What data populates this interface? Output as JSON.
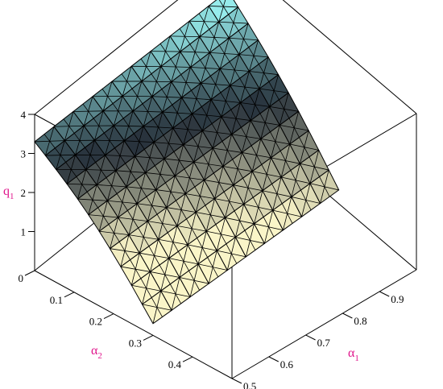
{
  "chart_data": {
    "type": "surface3d",
    "title": "",
    "axes": {
      "x": {
        "symbol": "α",
        "subscript": "1",
        "range": [
          0.5,
          1.0
        ],
        "ticks": [
          "0.5",
          "0.6",
          "0.7",
          "0.8",
          "0.9"
        ]
      },
      "y": {
        "symbol": "α",
        "subscript": "2",
        "range": [
          0,
          0.5
        ],
        "ticks": [
          "0",
          "0.1",
          "0.2",
          "0.3",
          "0.4"
        ]
      },
      "z": {
        "symbol": "q",
        "subscript": "1",
        "range": [
          0,
          4
        ],
        "ticks": [
          "1",
          "2",
          "3",
          "4"
        ]
      }
    },
    "surface": {
      "domain_alpha1": [
        0.5,
        0.99
      ],
      "domain_alpha2": [
        0.0,
        0.3
      ],
      "grid_rows": 11,
      "grid_cols": 10,
      "corner_values": {
        "alpha1_0.5_alpha2_0.0": 3.3,
        "alpha1_0.99_alpha2_0.0": 3.2,
        "alpha1_0.5_alpha2_0.3": 0.3,
        "alpha1_0.99_alpha2_0.3": 0.5
      }
    },
    "style": "patch with triangular mesh",
    "colors": {
      "axis_label": "#e0158c",
      "box": "#000000",
      "mesh": "#000000"
    }
  }
}
